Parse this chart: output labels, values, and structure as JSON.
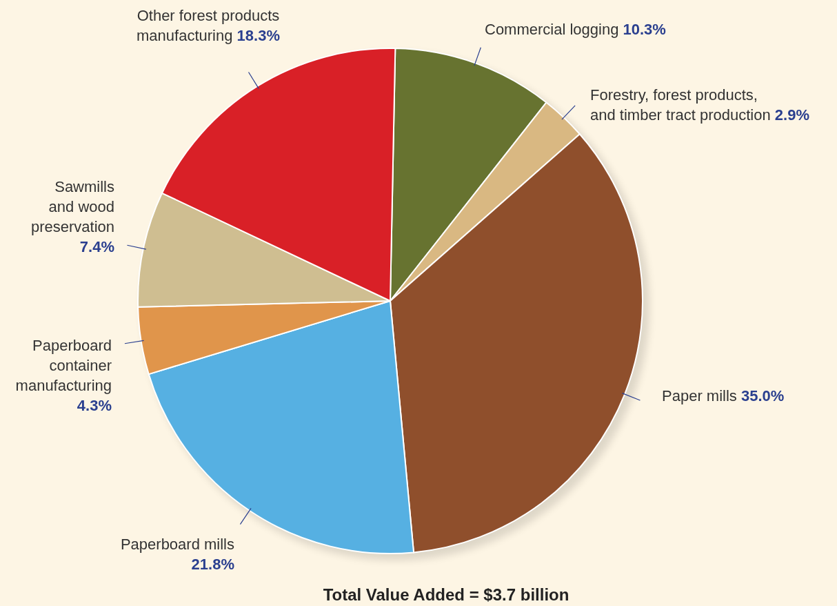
{
  "chart_data": {
    "type": "pie",
    "title": "Total Value Added = $3.7 billion",
    "categories": [
      "Commercial logging",
      "Forestry, forest products, and timber tract production",
      "Paper mills",
      "Paperboard mills",
      "Paperboard container manufacturing",
      "Sawmills and wood preservation",
      "Other forest products manufacturing"
    ],
    "values": [
      10.3,
      2.9,
      35.0,
      21.8,
      4.3,
      7.4,
      18.3
    ],
    "colors": [
      "#677330",
      "#d9b882",
      "#8f4f2c",
      "#56b0e2",
      "#e0954b",
      "#cfbe91",
      "#d92027"
    ],
    "value_labels": [
      "10.3%",
      "2.9%",
      "35.0%",
      "21.8%",
      "4.3%",
      "7.4%",
      "18.3%"
    ]
  }
}
